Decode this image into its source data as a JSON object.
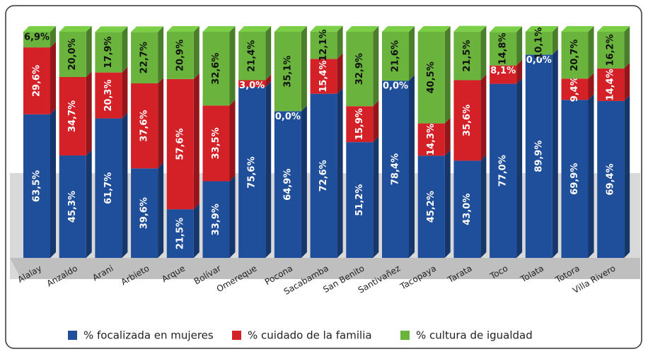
{
  "chart_data": {
    "type": "stacked-bar-3d",
    "categories": [
      "Alalay",
      "Anzaldo",
      "Arani",
      "Arbieto",
      "Arque",
      "Bolívar",
      "Omereque",
      "Pocona",
      "Sacabamba",
      "San Benito",
      "Santivañez",
      "Tacopaya",
      "Tarata",
      "Toco",
      "Tolata",
      "Totora",
      "Villa Rivero"
    ],
    "ylim": [
      0,
      100
    ],
    "legend": "bottom",
    "series": [
      {
        "name": "% focalizada en mujeres",
        "color": "#1f4e9a",
        "values": [
          63.5,
          45.3,
          61.7,
          39.6,
          21.5,
          33.9,
          75.6,
          64.9,
          72.6,
          51.2,
          78.4,
          45.2,
          43.0,
          77.0,
          89.9,
          69.9,
          69.4
        ],
        "value_labels": [
          "63,5%",
          "45,3%",
          "61,7%",
          "39,6%",
          "21,5%",
          "33,9%",
          "75,6%",
          "64,9%",
          "72,6%",
          "51,2%",
          "78,4%",
          "45,2%",
          "43,0%",
          "77,0%",
          "89,9%",
          "69,9%",
          "69,4%"
        ]
      },
      {
        "name": "% cuidado de la familia",
        "color": "#d42027",
        "values": [
          29.6,
          34.7,
          20.3,
          37.6,
          57.6,
          33.5,
          3.0,
          0.0,
          15.4,
          15.9,
          0.0,
          14.3,
          35.6,
          8.1,
          0.0,
          9.4,
          14.4
        ],
        "value_labels": [
          "29,6%",
          "34,7%",
          "20,3%",
          "37,6%",
          "57,6%",
          "33,5%",
          "3,0%",
          "0,0%",
          "15,4%",
          "15,9%",
          "0,0%",
          "14,3%",
          "35,6%",
          "8,1%",
          "0,0%",
          "9,4%",
          "14,4%"
        ]
      },
      {
        "name": "% cultura de igualdad",
        "color": "#6ab43e",
        "values": [
          6.9,
          20.0,
          17.9,
          22.7,
          20.9,
          32.6,
          21.4,
          35.1,
          12.1,
          32.9,
          21.6,
          40.5,
          21.5,
          14.8,
          10.1,
          20.7,
          16.2
        ],
        "value_labels": [
          "6,9%",
          "20,0%",
          "17,9%",
          "22,7%",
          "20,9%",
          "32,6%",
          "21,4%",
          "35,1%",
          "12,1%",
          "32,9%",
          "21,6%",
          "40,5%",
          "21,5%",
          "14,8%",
          "10,1%",
          "20,7%",
          "16,2%"
        ]
      }
    ]
  }
}
